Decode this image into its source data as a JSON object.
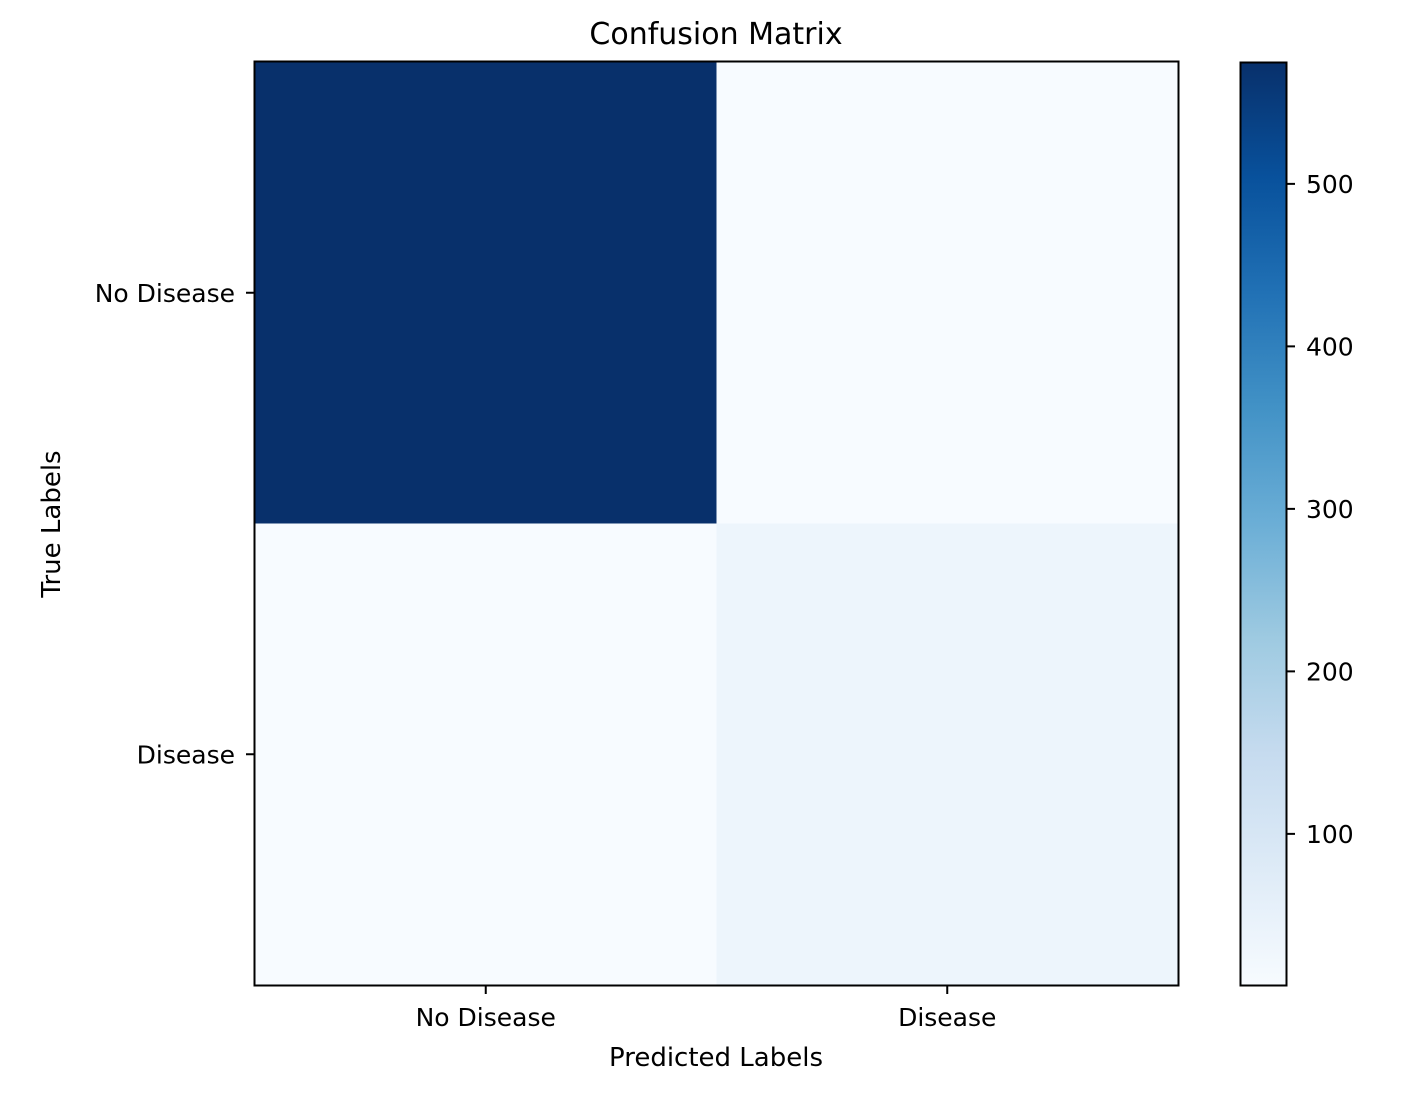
{
  "chart_data": {
    "type": "heatmap",
    "title": "Confusion Matrix",
    "xlabel": "Predicted Labels",
    "ylabel": "True Labels",
    "x_categories": [
      "No Disease",
      "Disease"
    ],
    "y_categories": [
      "No Disease",
      "Disease"
    ],
    "values": [
      [
        575,
        7
      ],
      [
        8,
        35
      ]
    ],
    "colormap": "Blues",
    "colorbar": {
      "ticks": [
        100,
        200,
        300,
        400,
        500
      ],
      "tick_labels": [
        "100",
        "200",
        "300",
        "400",
        "500"
      ],
      "vmin": 7,
      "vmax": 575
    },
    "grid": false,
    "legend": "colorbar-right"
  }
}
